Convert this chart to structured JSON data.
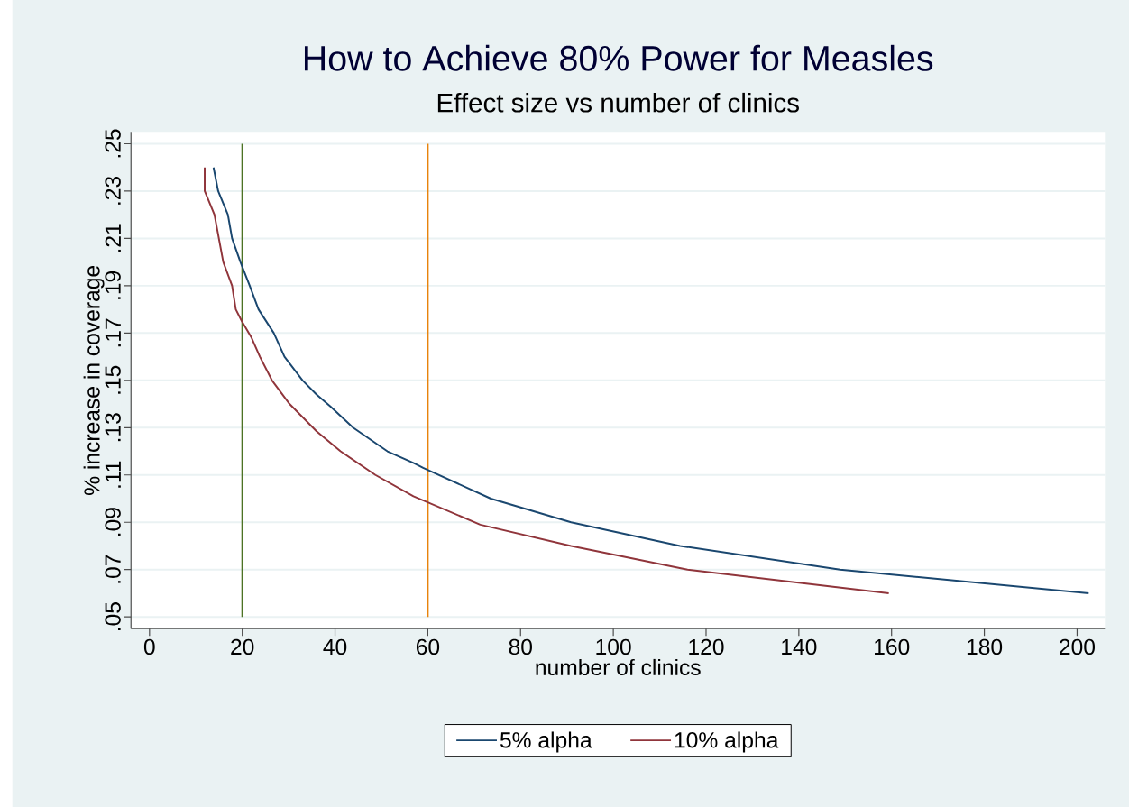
{
  "chart_data": {
    "type": "line",
    "title": "How to Achieve 80% Power for Measles",
    "subtitle": "Effect size vs number of clinics",
    "xlabel": "number of clinics",
    "ylabel": "% increase in coverage",
    "series": [
      {
        "name": "5% alpha",
        "color": "#1a476f",
        "x": [
          13.8,
          14.8,
          16.9,
          17.8,
          19.6,
          21.6,
          23.5,
          26.8,
          29.1,
          33,
          36,
          39,
          43.9,
          51.3,
          57,
          59,
          73.6,
          90.9,
          114.4,
          148.9,
          202.5
        ],
        "values": [
          0.24,
          0.23,
          0.22,
          0.21,
          0.2,
          0.19,
          0.18,
          0.17,
          0.16,
          0.15,
          0.144,
          0.139,
          0.13,
          0.12,
          0.115,
          0.113,
          0.1,
          0.09,
          0.08,
          0.07,
          0.06
        ]
      },
      {
        "name": "10% alpha",
        "color": "#90353b",
        "x": [
          11.9,
          11.9,
          14,
          15.9,
          17.8,
          18.6,
          19.9,
          22,
          23.8,
          26.4,
          30.2,
          36,
          41.2,
          48.7,
          56.9,
          71.3,
          90.9,
          116,
          159.4
        ],
        "values": [
          0.24,
          0.23,
          0.22,
          0.2,
          0.19,
          0.18,
          0.175,
          0.168,
          0.16,
          0.15,
          0.14,
          0.1285,
          0.12,
          0.11,
          0.101,
          0.089,
          0.08,
          0.07,
          0.06
        ]
      }
    ],
    "xlim": [
      -4,
      206
    ],
    "ylim": [
      0.045,
      0.255
    ],
    "xticks": [
      0,
      20,
      40,
      60,
      80,
      100,
      120,
      140,
      160,
      180,
      200
    ],
    "yticks": [
      {
        "value": 0.05,
        "label": ".05"
      },
      {
        "value": 0.07,
        "label": ".07"
      },
      {
        "value": 0.09,
        "label": ".09"
      },
      {
        "value": 0.11,
        "label": ".11"
      },
      {
        "value": 0.13,
        "label": ".13"
      },
      {
        "value": 0.15,
        "label": ".15"
      },
      {
        "value": 0.17,
        "label": ".17"
      },
      {
        "value": 0.19,
        "label": ".19"
      },
      {
        "value": 0.21,
        "label": ".21"
      },
      {
        "value": 0.23,
        "label": ".23"
      },
      {
        "value": 0.25,
        "label": ".25"
      }
    ],
    "grid": "y",
    "legend": "bottom",
    "ref_lines": [
      {
        "axis": "x",
        "value": 20,
        "color": "#4d7325"
      },
      {
        "axis": "x",
        "value": 60,
        "color": "#e8830c"
      }
    ]
  }
}
